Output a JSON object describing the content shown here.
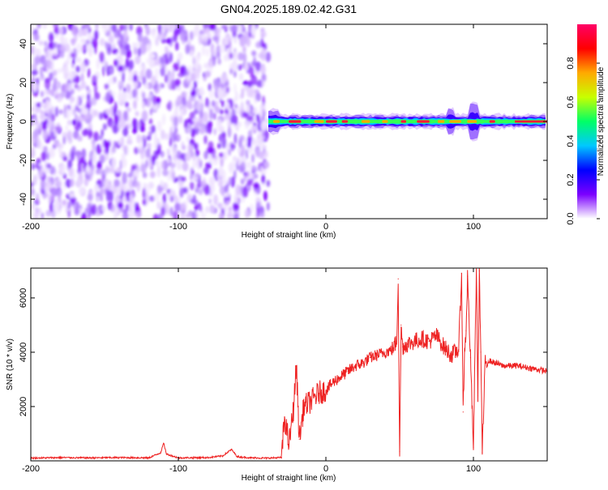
{
  "title": "GN04.2025.189.02.42.G31",
  "colors": {
    "spectrum_low": "#7b00ff",
    "snr_line": "#ee2222"
  },
  "chart_data": [
    {
      "type": "heatmap",
      "xlabel": "Height of straight line (km)",
      "ylabel": "Frequency (Hz)",
      "xlim": [
        -200,
        150
      ],
      "ylim": [
        -50,
        50
      ],
      "xticks": [
        -200,
        -100,
        0,
        100
      ],
      "yticks": [
        -40,
        -20,
        0,
        20,
        40
      ],
      "colorbar": {
        "label": "Normalized spectral amplitude",
        "range": [
          0,
          1
        ],
        "ticks": [
          "0.0",
          "0.2",
          "0.4",
          "0.6",
          "0.8"
        ],
        "ticks_values": [
          0.0,
          0.2,
          0.4,
          0.6,
          0.8
        ],
        "colormap": [
          "#ffffff",
          "#7b00ff",
          "#0000ff",
          "#00c8ff",
          "#00ff66",
          "#c8ff00",
          "#ffaa00",
          "#ff0000",
          "#ff0066"
        ]
      },
      "regions": [
        {
          "name": "noise",
          "x": [
            -200,
            -39
          ],
          "y": [
            -50,
            50
          ],
          "amplitude": [
            0.0,
            0.25
          ]
        },
        {
          "name": "carrier",
          "x": [
            -39,
            150
          ],
          "center_frequency": 0,
          "amplitude_peak": 1.0
        }
      ]
    },
    {
      "type": "line",
      "xlabel": "Height of straight line (km)",
      "ylabel": "SNR (10 * v/v)",
      "xlim": [
        -200,
        150
      ],
      "ylim": [
        0,
        7100
      ],
      "xticks": [
        -200,
        -100,
        0,
        100
      ],
      "yticks": [
        2000,
        4000,
        6000
      ],
      "series": [
        {
          "x": [
            -200,
            -180,
            -160,
            -140,
            -120,
            -112,
            -110,
            -108,
            -100,
            -80,
            -70,
            -64,
            -60,
            -50,
            -40,
            -30,
            -28,
            -25,
            -22,
            -20,
            -18,
            -15,
            -10,
            -5,
            0,
            5,
            10,
            15,
            20,
            25,
            30,
            35,
            40,
            45,
            48,
            49,
            50,
            51,
            52,
            55,
            60,
            65,
            70,
            75,
            80,
            85,
            90,
            92,
            93,
            94,
            95,
            96,
            98,
            100,
            102,
            103,
            104,
            105,
            106,
            108,
            110,
            115,
            120,
            130,
            140,
            150
          ],
          "y": [
            100,
            120,
            110,
            120,
            110,
            300,
            650,
            250,
            110,
            120,
            180,
            420,
            150,
            110,
            100,
            120,
            1600,
            600,
            1900,
            3500,
            800,
            2000,
            2200,
            2500,
            2600,
            2900,
            3100,
            3300,
            3500,
            3600,
            3800,
            3900,
            4000,
            4100,
            4400,
            6700,
            350,
            5000,
            4200,
            4300,
            4400,
            4500,
            4400,
            4600,
            4200,
            3900,
            4100,
            6900,
            1800,
            4000,
            4800,
            6800,
            3800,
            500,
            7100,
            2400,
            7000,
            4000,
            300,
            3600,
            3700,
            3600,
            3500,
            3500,
            3400,
            3300
          ]
        }
      ]
    }
  ]
}
